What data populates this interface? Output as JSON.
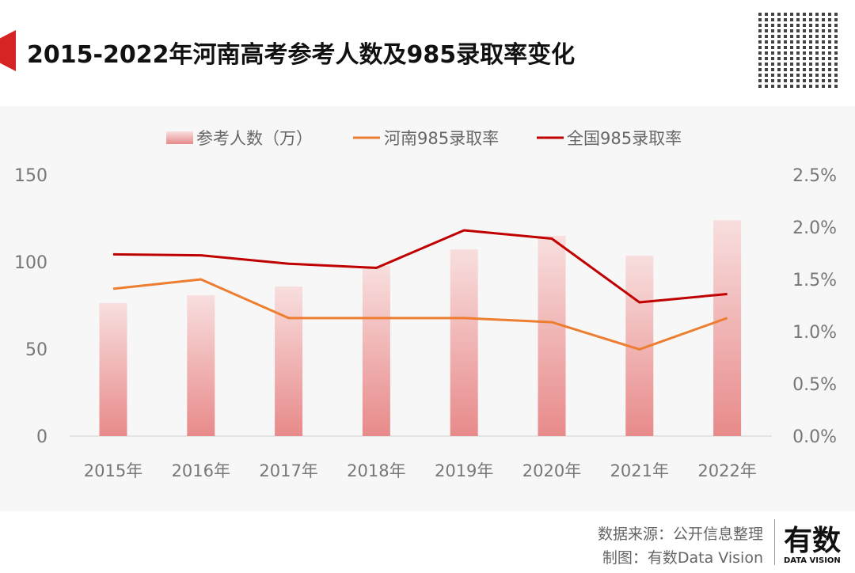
{
  "header": {
    "title": "2015-2022年河南高考参考人数及985录取率变化"
  },
  "footer": {
    "source": "数据来源：公开信息整理",
    "made_by": "制图：有数Data Vision",
    "logo_text": "有数",
    "logo_sub": "DATA VISION"
  },
  "chart_data": {
    "type": "bar+line",
    "categories": [
      "2015年",
      "2016年",
      "2017年",
      "2018年",
      "2019年",
      "2020年",
      "2021年",
      "2022年"
    ],
    "left_axis": {
      "ylim": [
        0,
        150
      ],
      "ticks": [
        "0",
        "50",
        "100",
        "150"
      ]
    },
    "right_axis": {
      "ylim": [
        0,
        2.5
      ],
      "ticks": [
        "0.0%",
        "0.5%",
        "1.0%",
        "1.5%",
        "2.0%",
        "2.5%"
      ]
    },
    "legend_position": "top",
    "series": [
      {
        "name": "参考人数（万）",
        "type": "bar",
        "axis": "left",
        "color": "#e88a8a",
        "values": [
          76.4,
          80.9,
          85.9,
          97.7,
          107.3,
          115,
          103.6,
          124
        ]
      },
      {
        "name": "河南985录取率",
        "type": "line",
        "axis": "right",
        "color": "#ed7d31",
        "values": [
          1.41,
          1.5,
          1.13,
          1.13,
          1.13,
          1.09,
          0.83,
          1.13
        ]
      },
      {
        "name": "全国985录取率",
        "type": "line",
        "axis": "right",
        "color": "#c00000",
        "values": [
          1.74,
          1.73,
          1.65,
          1.61,
          1.97,
          1.89,
          1.28,
          1.36
        ]
      }
    ]
  }
}
